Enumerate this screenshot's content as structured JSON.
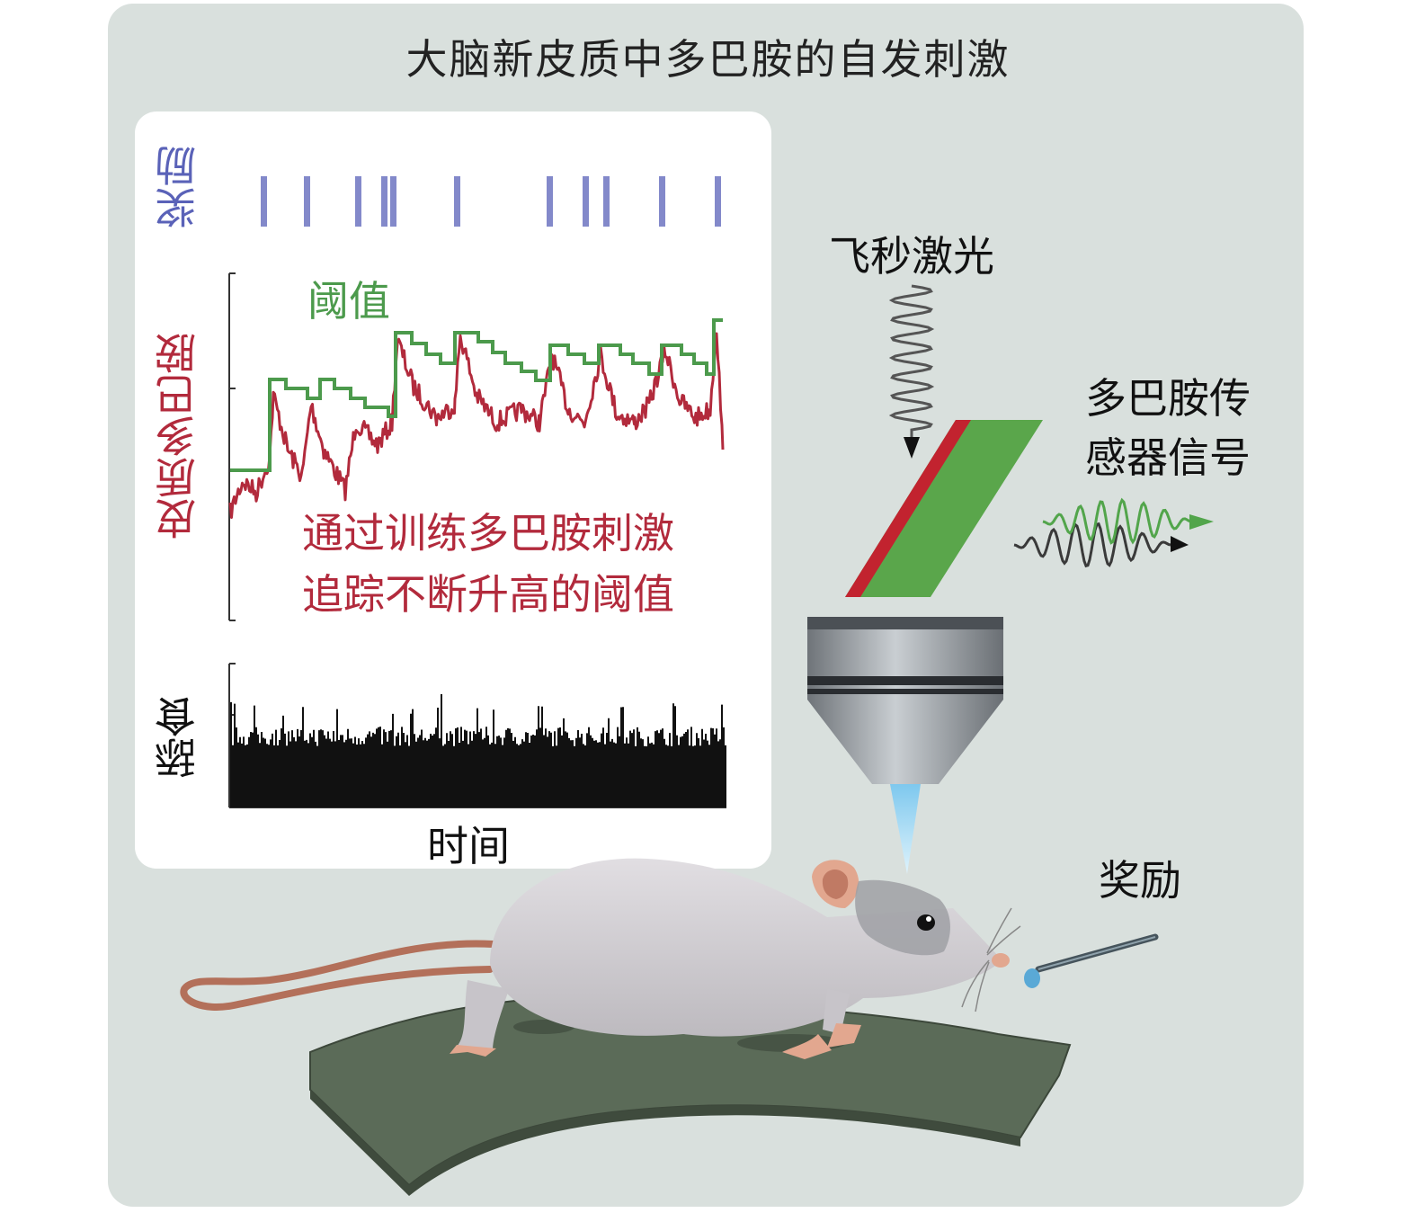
{
  "title": "大脑新皮质中多巴胺的自发刺激",
  "graph": {
    "reward_label": "奖励",
    "dopamine_label": "皮质多巴胺",
    "threshold_label": "阈值",
    "licking_label": "舔食",
    "time_label": "时间",
    "annotation_line1": "通过训练多巴胺刺激",
    "annotation_line2": "追踪不断升高的阈值"
  },
  "labels": {
    "laser": "飞秒激光",
    "sensor_line1": "多巴胺传",
    "sensor_line2": "感器信号",
    "reward": "奖励"
  },
  "colors": {
    "reward_ticks": "#5a62b8",
    "dopamine_trace": "#b22a3c",
    "threshold_line": "#4c9a4c",
    "licking_trace": "#111111",
    "panel_background": "#d9e0dd",
    "mouse_body": "#cfccd0",
    "mouse_tail": "#b3705a",
    "mat": "#5b6b58"
  },
  "icons": {
    "objective": "microscope-objective-icon",
    "mouse": "mouse-illustration",
    "sensor": "sensor-prism-icon"
  }
}
